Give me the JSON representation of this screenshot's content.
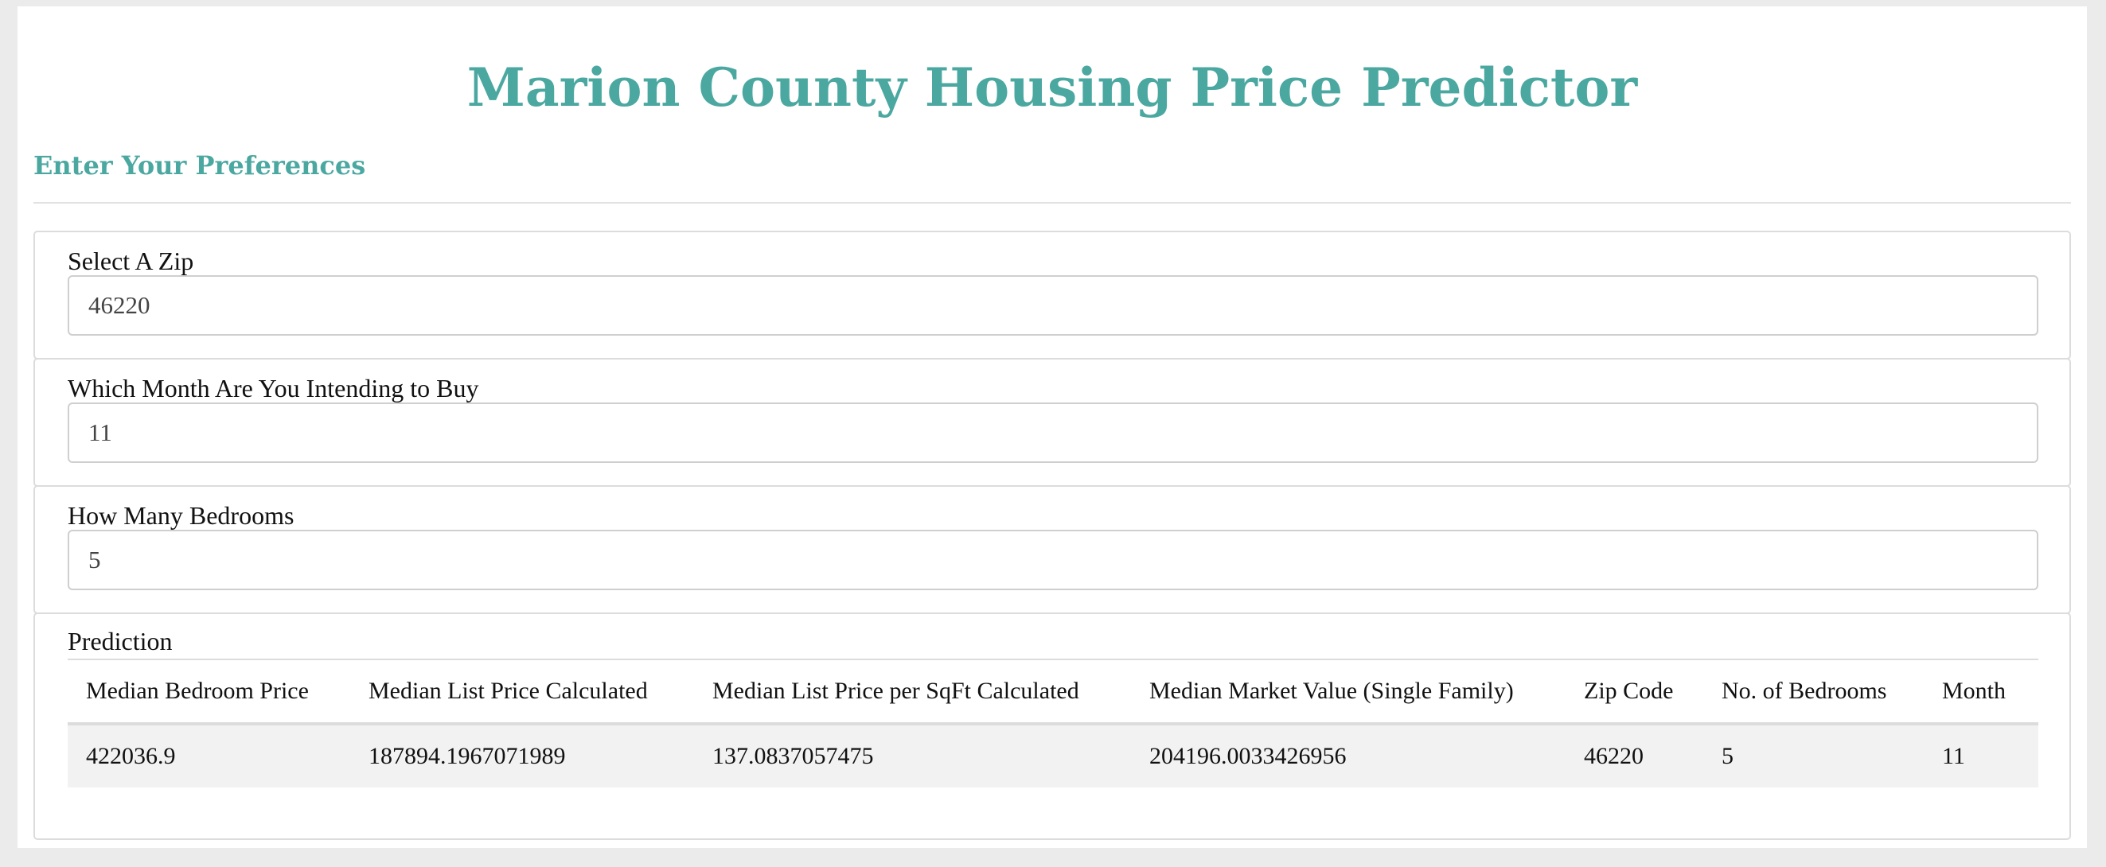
{
  "header": {
    "title": "Marion County Housing Price Predictor",
    "subtitle": "Enter Your Preferences"
  },
  "colors": {
    "accent": "#4ba8a1",
    "page_background": "#ebebeb",
    "panel_background": "#ffffff",
    "table_row_background": "#f2f2f2"
  },
  "inputs": {
    "zip": {
      "label": "Select A Zip",
      "value": "46220"
    },
    "month": {
      "label": "Which Month Are You Intending to Buy",
      "value": "11"
    },
    "bedrooms": {
      "label": "How Many Bedrooms",
      "value": "5"
    }
  },
  "prediction": {
    "label": "Prediction",
    "columns": [
      "Median Bedroom Price",
      "Median List Price Calculated",
      "Median List Price per SqFt Calculated",
      "Median Market Value (Single Family)",
      "Zip Code",
      "No. of Bedrooms",
      "Month"
    ],
    "rows": [
      [
        "422036.9",
        "187894.1967071989",
        "137.0837057475",
        "204196.0033426956",
        "46220",
        "5",
        "11"
      ]
    ]
  }
}
